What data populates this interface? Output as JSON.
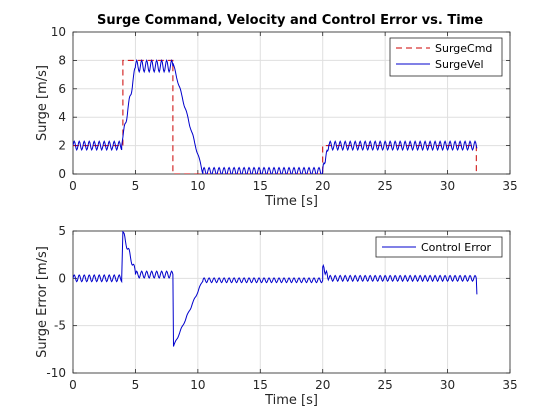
{
  "chart_data": [
    {
      "type": "line",
      "title": "Surge Command, Velocity and Control Error vs. Time",
      "xlabel": "Time [s]",
      "ylabel": "Surge [m/s]",
      "xlim": [
        0,
        35
      ],
      "ylim": [
        0,
        10
      ],
      "xticks": [
        0,
        5,
        10,
        15,
        20,
        25,
        30,
        35
      ],
      "yticks": [
        0,
        2,
        4,
        6,
        8,
        10
      ],
      "grid": true,
      "legend_position": "top-right",
      "series": [
        {
          "name": "SurgeCmd",
          "color": "#cc0000",
          "dash": "dashed",
          "points": [
            [
              0,
              2
            ],
            [
              4,
              2
            ],
            [
              4,
              8
            ],
            [
              8,
              8
            ],
            [
              8,
              0
            ],
            [
              20,
              0
            ],
            [
              20,
              2
            ],
            [
              32.3,
              2
            ],
            [
              32.3,
              0
            ]
          ]
        },
        {
          "name": "SurgeVel",
          "color": "#0000cc",
          "dash": "solid",
          "segments": [
            {
              "t0": 0,
              "t1": 3.9,
              "base0": 2.0,
              "base1": 2.0,
              "amp": 0.3,
              "period": 0.4
            },
            {
              "t0": 3.9,
              "t1": 4.0,
              "base0": 2.0,
              "base1": 2.6,
              "amp": 0,
              "period": 1
            },
            {
              "t0": 4.0,
              "t1": 5.0,
              "base0": 2.6,
              "base1": 7.5,
              "amp": 0.25,
              "period": 0.4
            },
            {
              "t0": 5.0,
              "t1": 8.0,
              "base0": 7.6,
              "base1": 7.6,
              "amp": 0.4,
              "period": 0.4
            },
            {
              "t0": 8.0,
              "t1": 10.4,
              "base0": 7.8,
              "base1": 0.1,
              "amp": 0.1,
              "period": 0.5
            },
            {
              "t0": 10.4,
              "t1": 20.0,
              "base0": 0.2,
              "base1": 0.2,
              "amp": 0.25,
              "period": 0.4
            },
            {
              "t0": 20.0,
              "t1": 20.5,
              "base0": 0.3,
              "base1": 2.1,
              "amp": 0.2,
              "period": 0.25
            },
            {
              "t0": 20.5,
              "t1": 32.3,
              "base0": 2.0,
              "base1": 2.0,
              "amp": 0.3,
              "period": 0.4
            },
            {
              "t0": 32.3,
              "t1": 32.35,
              "base0": 2.0,
              "base1": 1.8,
              "amp": 0,
              "period": 1
            }
          ]
        }
      ]
    },
    {
      "type": "line",
      "title": "",
      "xlabel": "Time [s]",
      "ylabel": "Surge Error [m/s]",
      "xlim": [
        0,
        35
      ],
      "ylim": [
        -10,
        5
      ],
      "xticks": [
        0,
        5,
        10,
        15,
        20,
        25,
        30,
        35
      ],
      "yticks": [
        -10,
        -5,
        0,
        5
      ],
      "grid": true,
      "legend_position": "top-right",
      "series": [
        {
          "name": "Control Error",
          "color": "#0000cc",
          "dash": "solid",
          "segments": [
            {
              "t0": 0,
              "t1": 3.9,
              "base0": 0.0,
              "base1": 0.0,
              "amp": 0.35,
              "period": 0.4
            },
            {
              "t0": 3.9,
              "t1": 4.0,
              "base0": 0.0,
              "base1": 5.0,
              "amp": 0,
              "period": 1
            },
            {
              "t0": 4.0,
              "t1": 5.0,
              "base0": 4.8,
              "base1": 0.6,
              "amp": 0.35,
              "period": 0.4
            },
            {
              "t0": 5.0,
              "t1": 8.0,
              "base0": 0.4,
              "base1": 0.4,
              "amp": 0.35,
              "period": 0.4
            },
            {
              "t0": 8.0,
              "t1": 8.05,
              "base0": 0.4,
              "base1": -7.2,
              "amp": 0,
              "period": 1
            },
            {
              "t0": 8.05,
              "t1": 10.4,
              "base0": -7.2,
              "base1": -0.2,
              "amp": 0.1,
              "period": 0.5
            },
            {
              "t0": 10.4,
              "t1": 20.0,
              "base0": -0.2,
              "base1": -0.2,
              "amp": 0.25,
              "period": 0.4
            },
            {
              "t0": 20.0,
              "t1": 20.5,
              "base0": 1.2,
              "base1": 0.0,
              "amp": 0.3,
              "period": 0.25
            },
            {
              "t0": 20.5,
              "t1": 32.3,
              "base0": 0.0,
              "base1": 0.0,
              "amp": 0.3,
              "period": 0.4
            },
            {
              "t0": 32.3,
              "t1": 32.35,
              "base0": 0.0,
              "base1": -1.7,
              "amp": 0,
              "period": 1
            }
          ]
        }
      ]
    }
  ]
}
